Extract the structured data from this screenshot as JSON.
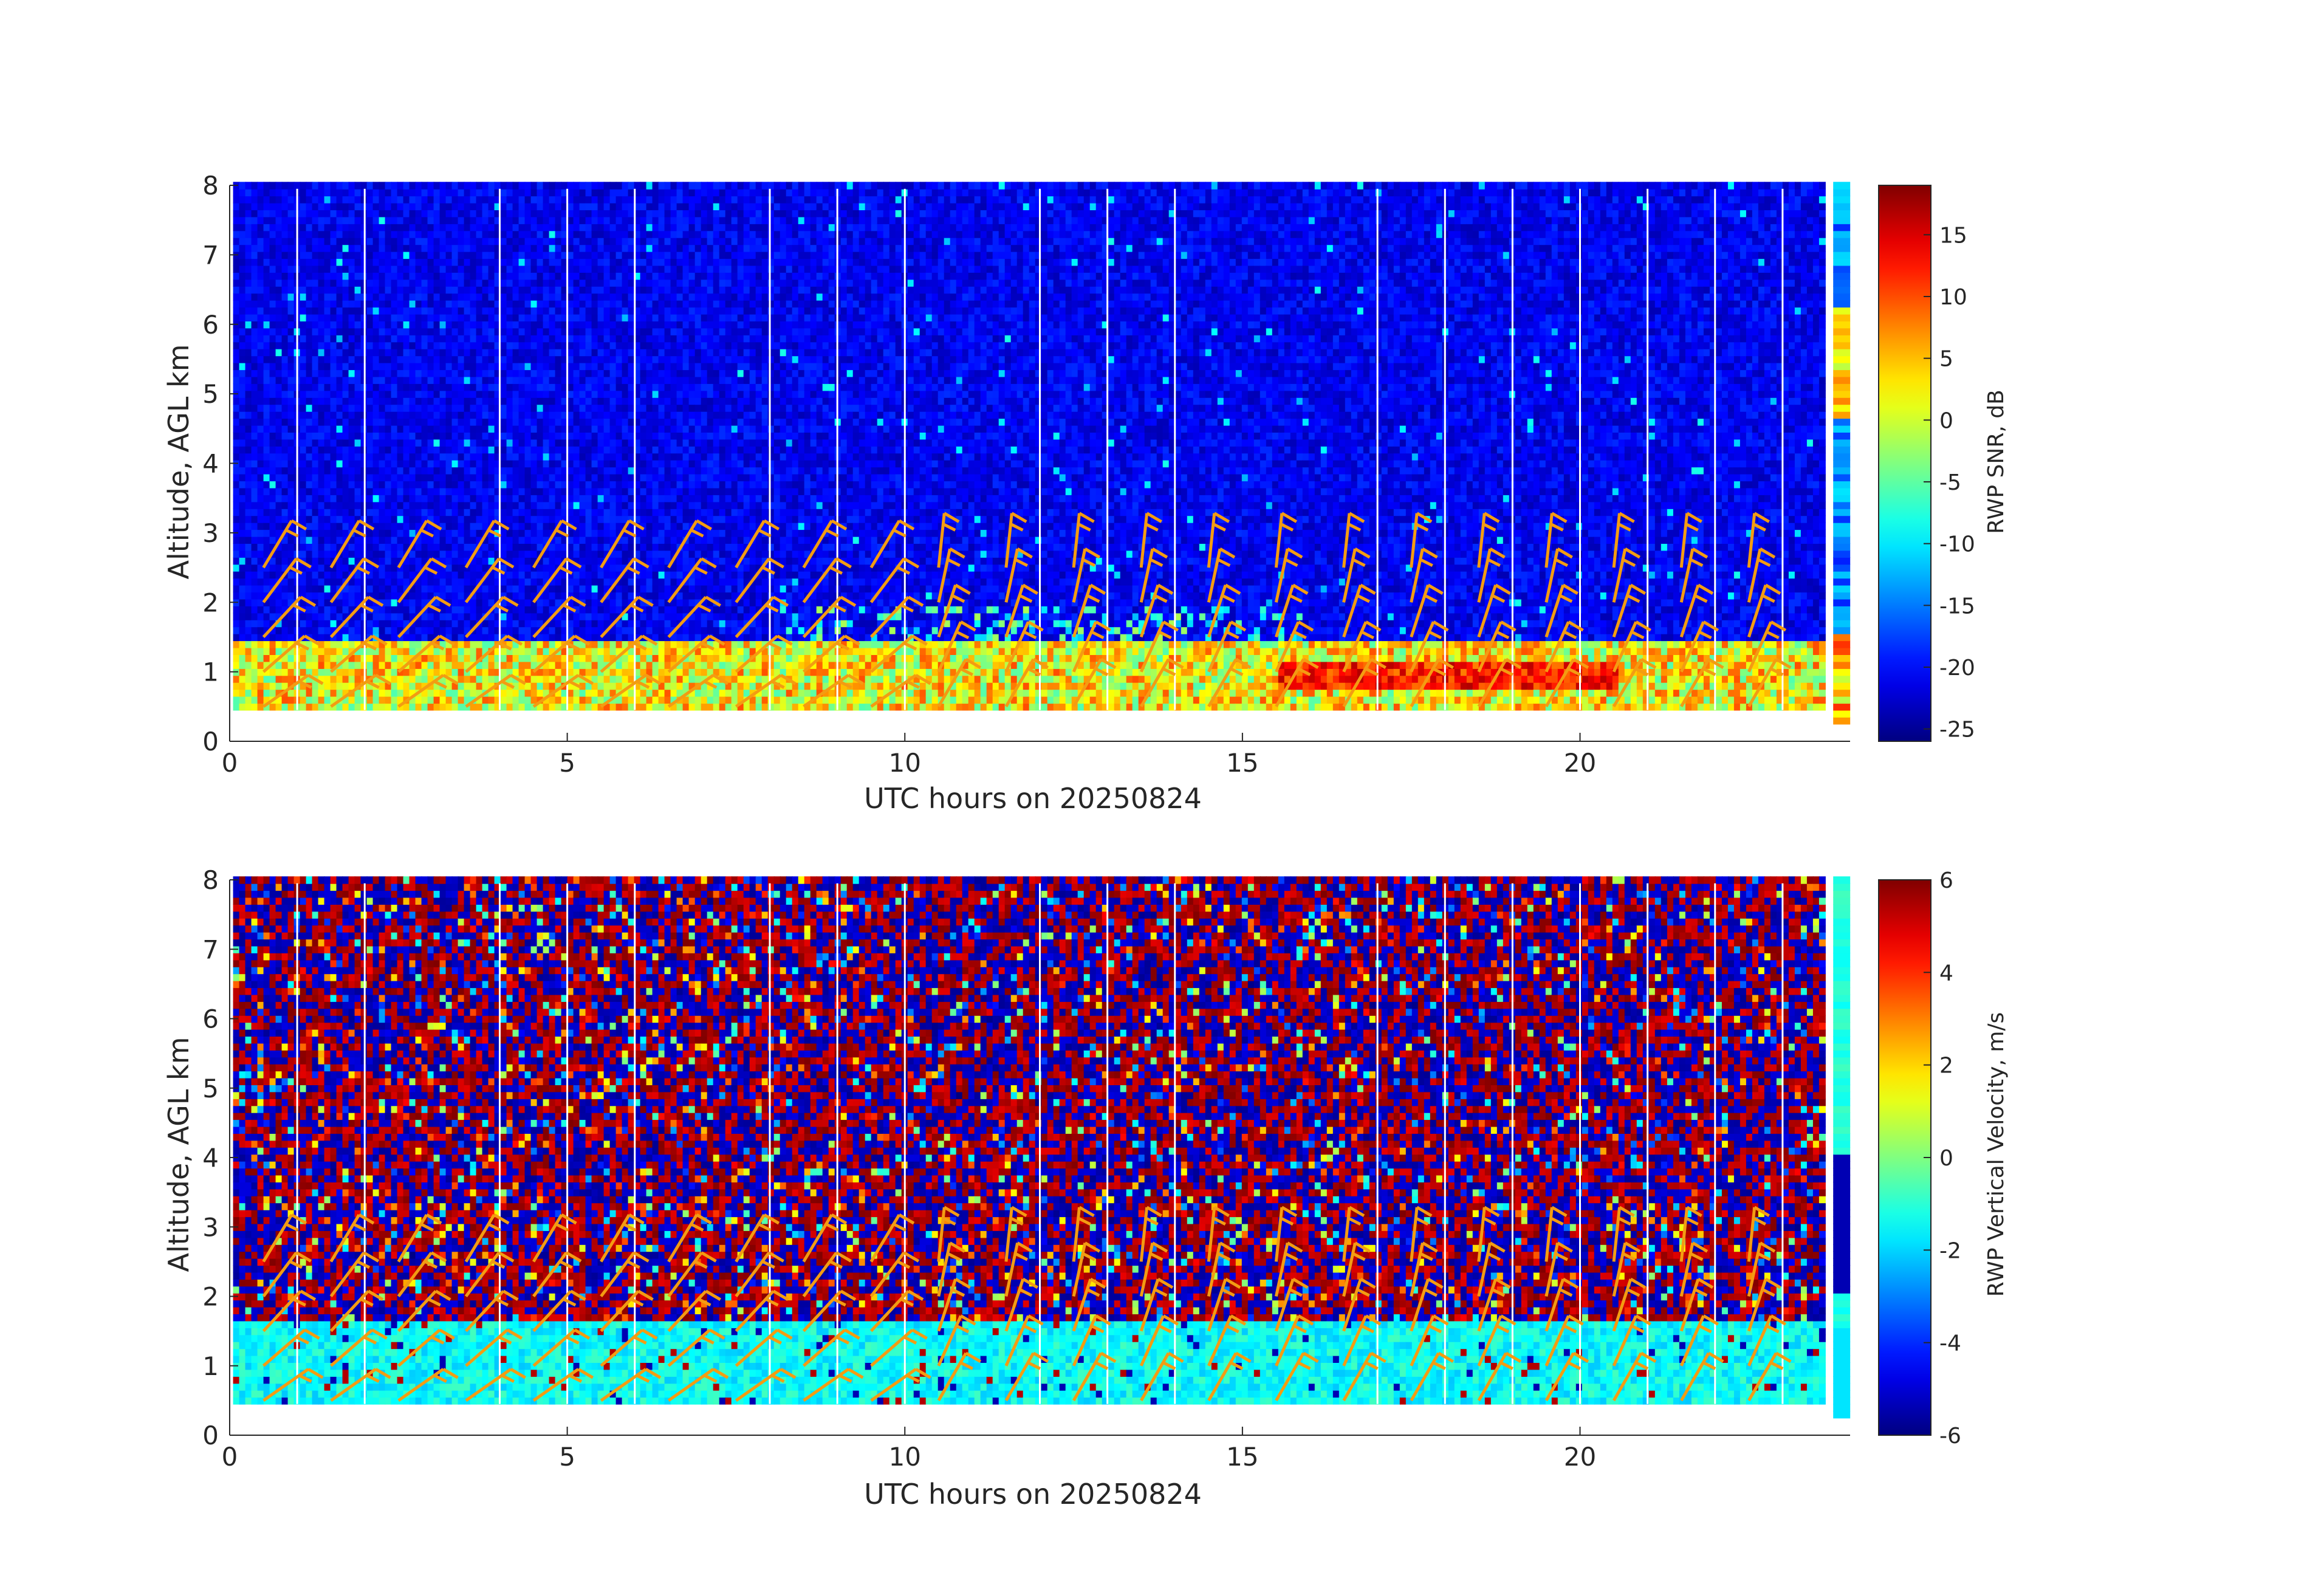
{
  "chart_data": [
    {
      "type": "heatmap",
      "title": "",
      "xlabel": "UTC hours on 20250824",
      "ylabel": "Altitude, AGL km",
      "xlim": [
        0,
        24
      ],
      "ylim": [
        0,
        8
      ],
      "xticks": [
        0,
        5,
        10,
        15,
        20
      ],
      "yticks": [
        0,
        1,
        2,
        3,
        4,
        5,
        6,
        7,
        8
      ],
      "grid": false,
      "colormap": "jet",
      "colorbar": {
        "label": "RWP SNR, dB",
        "range": [
          -26,
          19
        ],
        "ticks": [
          -25,
          -20,
          -15,
          -10,
          -5,
          0,
          5,
          10,
          15
        ]
      },
      "data_coverage": {
        "altitude_km": [
          0.45,
          7.95
        ],
        "time_h": [
          0.05,
          23.6
        ]
      },
      "data_gaps_h": [
        1,
        2,
        4,
        5,
        6,
        8,
        9,
        10,
        12,
        13,
        14,
        17,
        18,
        19,
        20,
        21,
        22,
        23
      ],
      "features": [
        {
          "name": "boundary-layer echo",
          "altitude_km": [
            0.45,
            1.45
          ],
          "snr_db": [
            -5,
            15
          ]
        },
        {
          "name": "background",
          "altitude_km": [
            1.5,
            7.95
          ],
          "snr_db": [
            -25,
            -20
          ]
        }
      ],
      "wind_barbs": {
        "color": "#f39c12",
        "altitudes_km": [
          0.5,
          1.0,
          1.5,
          2.0,
          2.5
        ]
      }
    },
    {
      "type": "heatmap",
      "title": "",
      "xlabel": "UTC hours on 20250824",
      "ylabel": "Altitude, AGL km",
      "xlim": [
        0,
        24
      ],
      "ylim": [
        0,
        8
      ],
      "xticks": [
        0,
        5,
        10,
        15,
        20
      ],
      "yticks": [
        0,
        1,
        2,
        3,
        4,
        5,
        6,
        7,
        8
      ],
      "grid": false,
      "colormap": "jet",
      "colorbar": {
        "label": "RWP Vertical Velocity, m/s",
        "range": [
          -6,
          6
        ],
        "ticks": [
          -6,
          -4,
          -2,
          0,
          2,
          4,
          6
        ]
      },
      "data_coverage": {
        "altitude_km": [
          0.45,
          7.95
        ],
        "time_h": [
          0.05,
          23.6
        ]
      },
      "data_gaps_h": [
        1,
        2,
        4,
        5,
        6,
        8,
        9,
        10,
        12,
        13,
        14,
        17,
        18,
        19,
        20,
        21,
        22,
        23
      ],
      "features": [
        {
          "name": "boundary-layer velocity",
          "altitude_km": [
            0.45,
            1.6
          ],
          "velocity_ms": [
            -2,
            0
          ]
        },
        {
          "name": "noise region",
          "altitude_km": [
            1.6,
            7.95
          ],
          "velocity_ms": [
            -6,
            6
          ]
        }
      ],
      "wind_barbs": {
        "color": "#f39c12",
        "altitudes_km": [
          0.5,
          1.0,
          1.5,
          2.0,
          2.5
        ]
      }
    }
  ]
}
